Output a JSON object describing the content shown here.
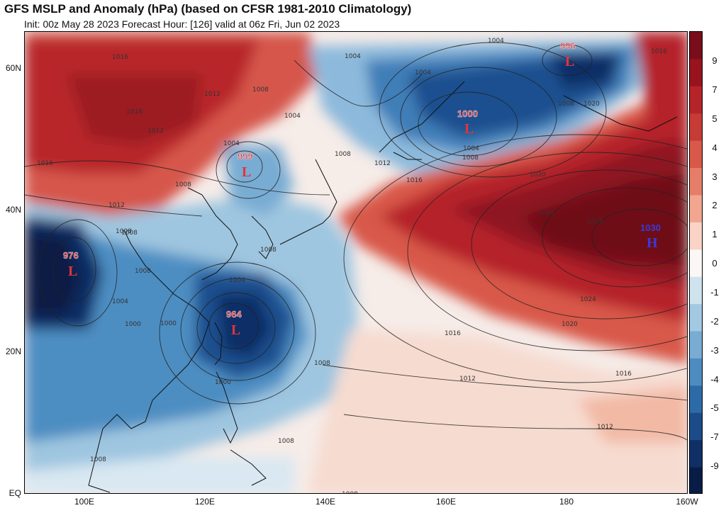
{
  "header": {
    "title": "GFS MSLP and Anomaly (hPa) (based on CFSR 1981-2010 Climatology)",
    "subtitle": "Init: 00z May 28 2023   Forecast Hour: [126]   valid at 06z Fri, Jun 02 2023"
  },
  "map": {
    "lat_labels": [
      "60N",
      "40N",
      "20N",
      "EQ"
    ],
    "lon_labels": [
      "100E",
      "120E",
      "140E",
      "160E",
      "180",
      "160W"
    ],
    "pressure_centers": [
      {
        "value": "996",
        "symbol": "L",
        "color": "#e0343c"
      },
      {
        "value": "1000",
        "symbol": "L",
        "color": "#e0343c"
      },
      {
        "value": "999",
        "symbol": "L",
        "color": "#e0343c"
      },
      {
        "value": "976",
        "symbol": "L",
        "color": "#e0343c"
      },
      {
        "value": "964",
        "symbol": "L",
        "color": "#e0343c"
      },
      {
        "value": "1030",
        "symbol": "H",
        "color": "#3a3ad8"
      }
    ],
    "isobar_labels": [
      "1016",
      "1012",
      "1004",
      "1008",
      "1016",
      "1016",
      "1012",
      "1008",
      "1004",
      "1004",
      "1004",
      "1008",
      "1012",
      "1016",
      "1020",
      "1024",
      "1028",
      "1024",
      "1020",
      "1016",
      "1012",
      "1012",
      "1016",
      "1008",
      "1008",
      "1008",
      "1008",
      "1000",
      "1000",
      "1000",
      "1004",
      "1004",
      "1008",
      "1012",
      "1008",
      "1008",
      "1008",
      "1004",
      "1004",
      "1008",
      "1008",
      "1020",
      "1016"
    ]
  },
  "colorbar": {
    "labels": [
      "9",
      "7",
      "5",
      "4",
      "3",
      "2",
      "1",
      "0",
      "-1",
      "-2",
      "-3",
      "-4",
      "-5",
      "-7",
      "-9"
    ],
    "colors": [
      "#7a0d1c",
      "#99131f",
      "#b52429",
      "#c73b36",
      "#d8584a",
      "#e67d69",
      "#f2a690",
      "#fad3c6",
      "#fbf7f5",
      "#cfe3ef",
      "#a3c9e2",
      "#78acd3",
      "#4c8cc0",
      "#2d6aa8",
      "#1c4b8a",
      "#0f2f66",
      "#081d45"
    ]
  }
}
